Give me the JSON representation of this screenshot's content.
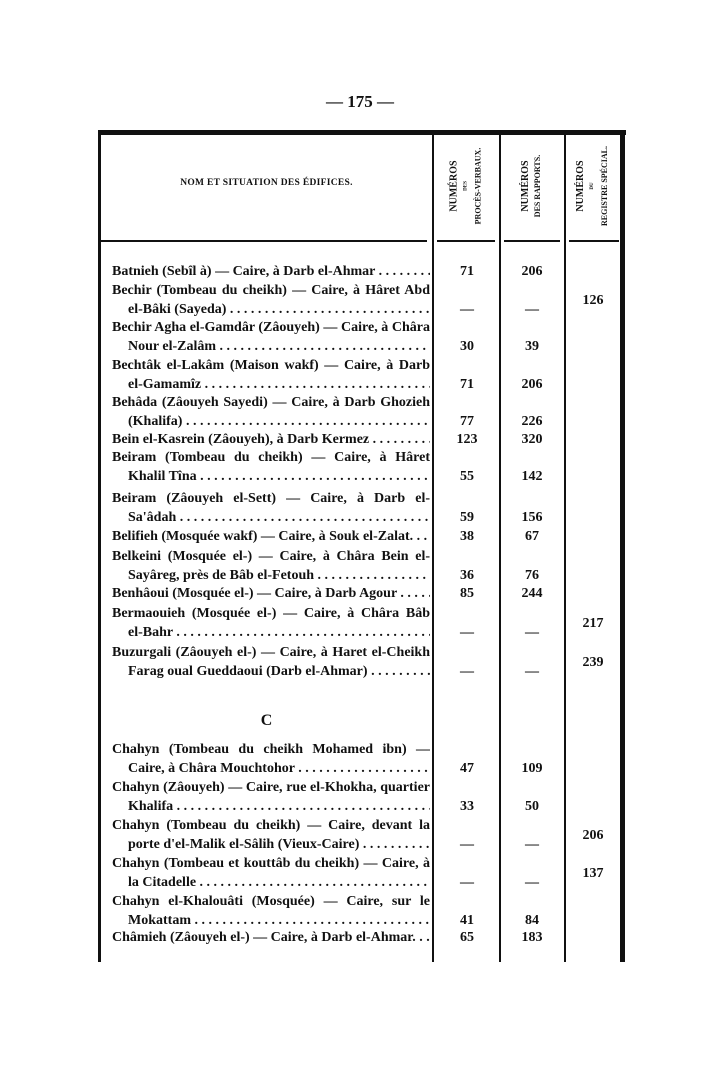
{
  "page_number": "— 175 —",
  "table": {
    "headers": {
      "name": "NOM ET SITUATION DES ÉDIFICES.",
      "col1": {
        "top": "NUMÉROS",
        "mid": "DES",
        "bottom": "PROCÈS-VERBAUX."
      },
      "col2": {
        "top": "NUMÉROS",
        "bottom": "DES RAPPORTS."
      },
      "col3": {
        "top": "NUMÉROS",
        "mid": "DU",
        "bottom": "REGISTRE SPÉCIAL."
      }
    },
    "section_letter": "C",
    "entries": [
      {
        "lines": [
          "Batnieh (Sebîl à) — Caire, à Darb el-Ahmar"
        ],
        "proces": "71",
        "rapports": "206",
        "registre": ""
      },
      {
        "lines": [
          "Bechir (Tombeau du cheikh) — Caire, à Hâret Abd",
          "el-Bâki (Sayeda)"
        ],
        "proces": "—",
        "rapports": "—",
        "registre": "126"
      },
      {
        "lines": [
          "Bechir Agha el-Gamdâr (Zâouyeh) — Caire, à Châra",
          "Nour el-Zalâm"
        ],
        "proces": "30",
        "rapports": "39",
        "registre": ""
      },
      {
        "lines": [
          "Bechtâk el-Lakâm (Maison wakf) — Caire, à Darb",
          "el-Gamamîz"
        ],
        "proces": "71",
        "rapports": "206",
        "registre": ""
      },
      {
        "lines": [
          "Behâda (Zâouyeh Sayedi) — Caire, à Darb Ghozieh",
          "(Khalifa)"
        ],
        "proces": "77",
        "rapports": "226",
        "registre": ""
      },
      {
        "lines": [
          "Bein el-Kasrein (Zâouyeh), à Darb Kermez"
        ],
        "proces": "123",
        "rapports": "320",
        "registre": ""
      },
      {
        "lines": [
          "Beiram (Tombeau du cheikh) — Caire, à Hâret",
          "Khalil Tîna"
        ],
        "proces": "55",
        "rapports": "142",
        "registre": ""
      },
      {
        "lines": [
          "Beiram (Zâouyeh el-Sett) — Caire, à Darb el-",
          "Sa'âdah"
        ],
        "proces": "59",
        "rapports": "156",
        "registre": ""
      },
      {
        "lines": [
          "Belifieh (Mosquée wakf) — Caire, à Souk el-Zalat."
        ],
        "proces": "38",
        "rapports": "67",
        "registre": ""
      },
      {
        "lines": [
          "Belkeini (Mosquée el-) — Caire, à Châra Bein el-",
          "Sayâreg, près de Bâb el-Fetouh"
        ],
        "proces": "36",
        "rapports": "76",
        "registre": ""
      },
      {
        "lines": [
          "Benhâoui (Mosquée el-) — Caire, à Darb Agour"
        ],
        "proces": "85",
        "rapports": "244",
        "registre": ""
      },
      {
        "lines": [
          "Bermaouieh (Mosquée el-) — Caire, à Châra Bâb",
          "el-Bahr"
        ],
        "proces": "—",
        "rapports": "—",
        "registre": "217"
      },
      {
        "lines": [
          "Buzurgali (Zâouyeh el-) — Caire, à Haret el-Cheikh",
          "Farag oual Gueddaoui (Darb el-Ahmar)"
        ],
        "proces": "—",
        "rapports": "—",
        "registre": "239"
      },
      {
        "lines": [
          "Chahyn (Tombeau du cheikh Mohamed ibn) —",
          "Caire, à Châra Mouchtohor"
        ],
        "proces": "47",
        "rapports": "109",
        "registre": ""
      },
      {
        "lines": [
          "Chahyn (Zâouyeh) — Caire, rue el-Khokha, quartier",
          "Khalifa"
        ],
        "proces": "33",
        "rapports": "50",
        "registre": ""
      },
      {
        "lines": [
          "Chahyn (Tombeau du cheikh) — Caire, devant la",
          "porte d'el-Malik el-Sâlih (Vieux-Caire)"
        ],
        "proces": "—",
        "rapports": "—",
        "registre": "206"
      },
      {
        "lines": [
          "Chahyn (Tombeau et kouttâb du cheikh) — Caire, à",
          "la Citadelle"
        ],
        "proces": "—",
        "rapports": "—",
        "registre": "137"
      },
      {
        "lines": [
          "Chahyn el-Khalouâti (Mosquée) — Caire, sur le",
          "Mokattam"
        ],
        "proces": "41",
        "rapports": "84",
        "registre": ""
      },
      {
        "lines": [
          "Châmieh (Zâouyeh el-) — Caire, à Darb el-Ahmar."
        ],
        "proces": "65",
        "rapports": "183",
        "registre": ""
      }
    ]
  }
}
